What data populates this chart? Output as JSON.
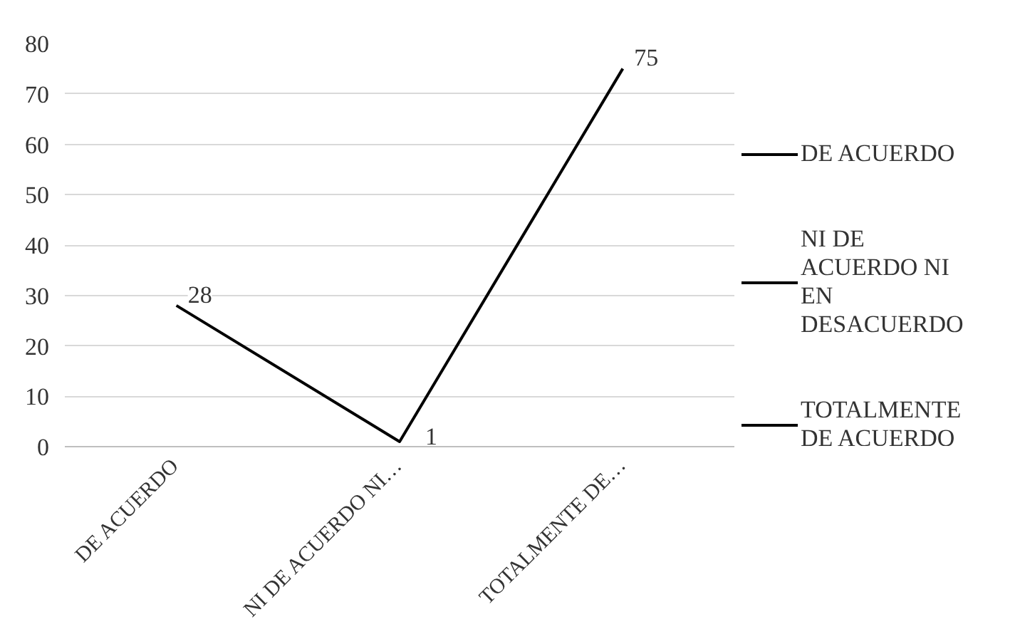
{
  "chart_data": {
    "type": "line",
    "categories": [
      "DE ACUERDO",
      "NI DE ACUERDO NI…",
      "TOTALMENTE DE…"
    ],
    "series": [
      {
        "color": "#000000",
        "values": [
          28,
          1,
          75
        ]
      }
    ],
    "ylim": [
      0,
      80
    ],
    "yticks": [
      0,
      10,
      20,
      30,
      40,
      50,
      60,
      70,
      80
    ],
    "grid": "y",
    "data_labels": true,
    "marker": "none",
    "annotations": [
      "DE ACUERDO",
      "NI DE ACUERDO NI EN DESACUERDO",
      "TOTALMENTE DE ACUERDO"
    ]
  }
}
